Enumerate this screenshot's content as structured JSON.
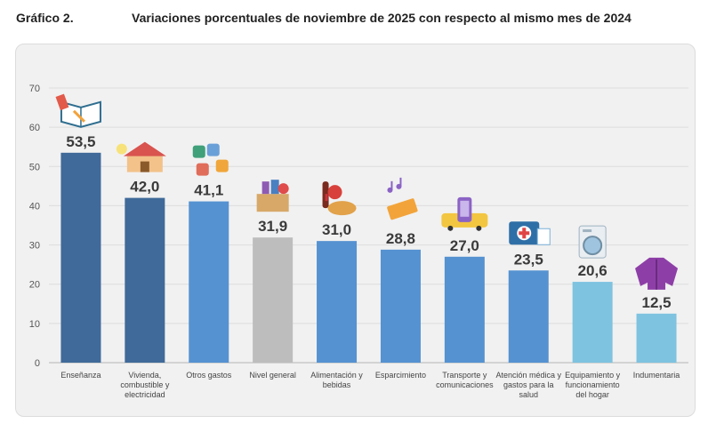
{
  "header": {
    "label": "Gráfico 2.",
    "title": "Variaciones porcentuales de noviembre de 2025 con respecto al mismo mes de 2024"
  },
  "chart_data": {
    "type": "bar",
    "title": "Variaciones porcentuales de noviembre de 2025 con respecto al mismo mes de 2024",
    "categories": [
      "Enseñanza",
      "Vivienda, combustible y electricidad",
      "Otros gastos",
      "Nivel general",
      "Alimentación y bebidas",
      "Esparcimiento",
      "Transporte y comunicaciones",
      "Atención médica y gastos para la salud",
      "Equipamiento y funcionamiento del hogar",
      "Indumentaria"
    ],
    "category_lines": [
      [
        "Enseñanza"
      ],
      [
        "Vivienda,",
        "combustible y",
        "electricidad"
      ],
      [
        "Otros gastos"
      ],
      [
        "Nivel general"
      ],
      [
        "Alimentación y",
        "bebidas"
      ],
      [
        "Esparcimiento"
      ],
      [
        "Transporte y",
        "comunicaciones"
      ],
      [
        "Atención médica y",
        "gastos para la",
        "salud"
      ],
      [
        "Equipamiento y",
        "funcionamiento",
        "del hogar"
      ],
      [
        "Indumentaria"
      ]
    ],
    "values": [
      53.5,
      42.0,
      41.1,
      31.9,
      31.0,
      28.8,
      27.0,
      23.5,
      20.6,
      12.5
    ],
    "value_labels": [
      "53,5",
      "42,0",
      "41,1",
      "31,9",
      "31,0",
      "28,8",
      "27,0",
      "23,5",
      "20,6",
      "12,5"
    ],
    "bar_colors": [
      "#3f6a99",
      "#3f6a99",
      "#5592d1",
      "#bdbdbd",
      "#5592d1",
      "#5592d1",
      "#5592d1",
      "#5592d1",
      "#7ec3e0",
      "#7ec3e0"
    ],
    "icons": [
      "book-icon",
      "house-icon",
      "puzzle-icon",
      "shopping-box-icon",
      "food-icon",
      "ticket-icon",
      "bus-phone-icon",
      "medical-kit-icon",
      "washing-machine-icon",
      "jacket-icon"
    ],
    "yticks": [
      0,
      10,
      20,
      30,
      40,
      50,
      60,
      70
    ],
    "ylim": [
      0,
      70
    ],
    "grid": true,
    "xlabel": "",
    "ylabel": ""
  }
}
